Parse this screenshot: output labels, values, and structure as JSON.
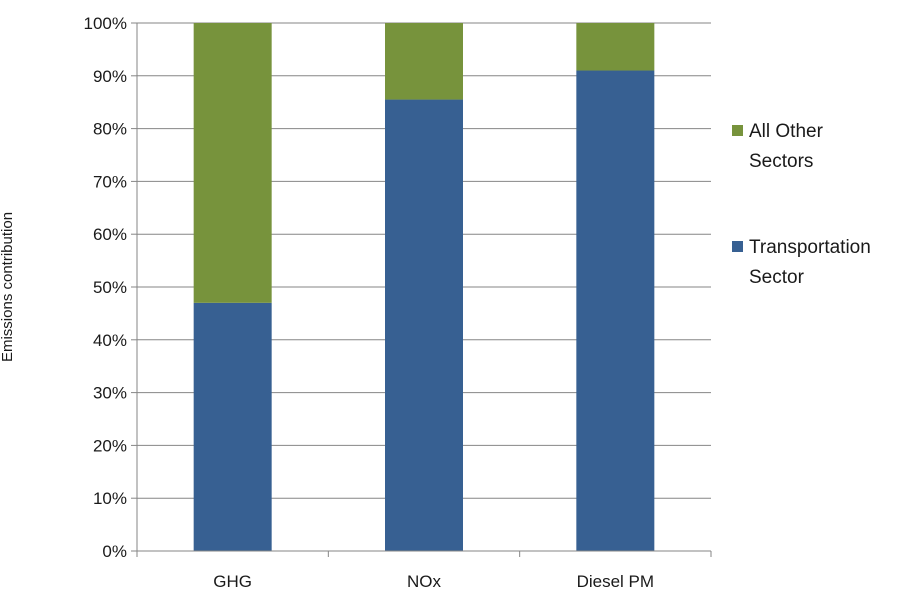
{
  "chart_data": {
    "type": "bar",
    "stacked": true,
    "categories": [
      "GHG",
      "NOx",
      "Diesel PM"
    ],
    "series": [
      {
        "name": "Transportation Sector",
        "color": "#376092",
        "values": [
          47,
          85.5,
          91
        ]
      },
      {
        "name": "All Other Sectors",
        "color": "#77933c",
        "values": [
          53,
          14.5,
          9
        ]
      }
    ],
    "legend": {
      "position": "right",
      "entries": [
        {
          "series": "All Other Sectors",
          "lines": [
            "All Other",
            "Sectors"
          ]
        },
        {
          "series": "Transportation Sector",
          "lines": [
            "Transportation",
            "Sector"
          ]
        }
      ]
    },
    "title": "",
    "xlabel": "",
    "ylabel": "Emissions contribution",
    "ylim": [
      0,
      100
    ],
    "yticks": [
      0,
      10,
      20,
      30,
      40,
      50,
      60,
      70,
      80,
      90,
      100
    ],
    "ytick_labels": [
      "0%",
      "10%",
      "20%",
      "30%",
      "40%",
      "50%",
      "60%",
      "70%",
      "80%",
      "90%",
      "100%"
    ],
    "grid": true,
    "grid_color": "#868686"
  }
}
